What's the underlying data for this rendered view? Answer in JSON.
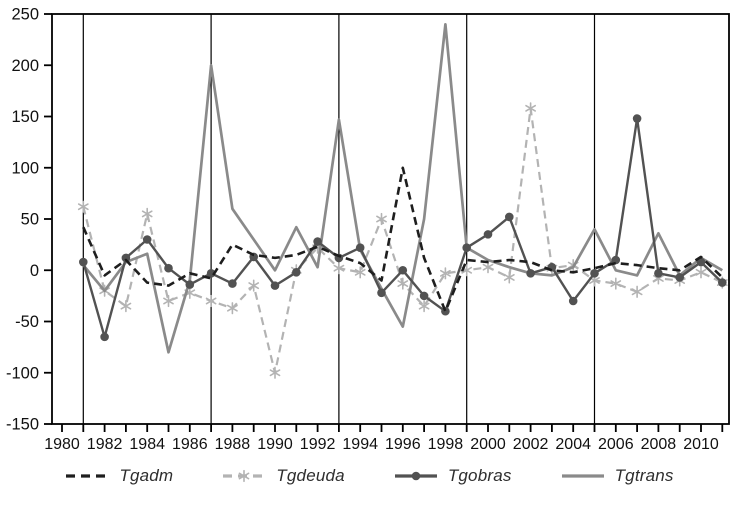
{
  "chart_data": {
    "type": "line",
    "title": "",
    "xlabel": "",
    "ylabel": "",
    "x_range": [
      1979.5,
      2011.5
    ],
    "y_range": [
      -150,
      250
    ],
    "y_ticks": [
      250,
      200,
      150,
      100,
      50,
      0,
      -50,
      -100,
      -150
    ],
    "x_tick_years": [
      1980,
      1981,
      1982,
      1983,
      1984,
      1985,
      1986,
      1987,
      1988,
      1989,
      1990,
      1991,
      1992,
      1993,
      1994,
      1995,
      1996,
      1997,
      1998,
      1999,
      2000,
      2001,
      2002,
      2003,
      2004,
      2005,
      2006,
      2007,
      2008,
      2009,
      2010,
      2011
    ],
    "x_tick_labels": [
      1980,
      1982,
      1984,
      1986,
      1988,
      1990,
      1992,
      1994,
      1996,
      1998,
      2000,
      2002,
      2004,
      2006,
      2008,
      2010
    ],
    "vertical_reference_lines": [
      1981,
      1987,
      1993,
      1999,
      2005
    ],
    "grid": false,
    "legend_position": "bottom",
    "years": [
      1981,
      1982,
      1983,
      1984,
      1985,
      1986,
      1987,
      1988,
      1989,
      1990,
      1991,
      1992,
      1993,
      1994,
      1995,
      1996,
      1997,
      1998,
      1999,
      2000,
      2001,
      2002,
      2003,
      2004,
      2005,
      2006,
      2007,
      2008,
      2009,
      2010,
      2011
    ],
    "series": [
      {
        "name": "Tgadm",
        "color": "#1e1e1e",
        "line": "dashed",
        "marker": "none",
        "width": 2.6,
        "values": [
          42,
          -5,
          10,
          -12,
          -15,
          -3,
          -8,
          25,
          15,
          12,
          15,
          23,
          14,
          7,
          -10,
          100,
          12,
          -40,
          10,
          8,
          10,
          8,
          0,
          -2,
          2,
          7,
          5,
          2,
          0,
          13,
          -7
        ]
      },
      {
        "name": "Tgdeuda",
        "color": "#b3b3b3",
        "line": "dashed",
        "marker": "asterisk",
        "width": 2.2,
        "values": [
          62,
          -20,
          -35,
          55,
          -30,
          -22,
          -30,
          -37,
          -15,
          -100,
          0,
          22,
          2,
          -2,
          50,
          -13,
          -35,
          -3,
          0,
          3,
          -7,
          158,
          2,
          5,
          -10,
          -13,
          -21,
          -8,
          -10,
          -2,
          -12
        ]
      },
      {
        "name": "Tgobras",
        "color": "#525252",
        "line": "solid",
        "marker": "circle",
        "width": 2.4,
        "values": [
          8,
          -65,
          12,
          30,
          2,
          -14,
          -3,
          -13,
          13,
          -15,
          -2,
          28,
          12,
          22,
          -22,
          0,
          -25,
          -40,
          22,
          35,
          52,
          -3,
          3,
          -30,
          -3,
          10,
          148,
          -3,
          -7,
          8,
          -12
        ]
      },
      {
        "name": "Tgtrans",
        "color": "#8a8a8a",
        "line": "solid",
        "marker": "none",
        "width": 2.7,
        "values": [
          5,
          -20,
          8,
          16,
          -80,
          -10,
          200,
          60,
          30,
          0,
          42,
          3,
          147,
          20,
          -18,
          -55,
          50,
          240,
          22,
          10,
          3,
          -3,
          -5,
          3,
          40,
          0,
          -5,
          36,
          -5,
          12,
          0
        ]
      }
    ]
  }
}
